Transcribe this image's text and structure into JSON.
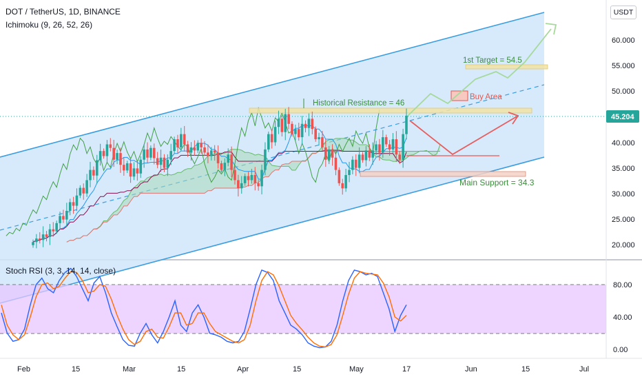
{
  "header": {
    "symbol_line": "DOT / TetherUS, 1D, BINANCE",
    "indicator_line": "Ichimoku (9, 26, 52, 26)",
    "currency_button": "USDT"
  },
  "stoch_panel": {
    "title": "Stoch RSI (3, 3, 14, 14, close)"
  },
  "colors": {
    "channel_fill": "#cfe6fb",
    "channel_line": "#3a9de0",
    "candle_up": "#26a69a",
    "candle_down": "#ef5350",
    "cloud_fill": "#a9d9b6",
    "price_badge": "#26a69a",
    "stoch_k": "#2962ff",
    "stoch_d": "#ff6d00",
    "stoch_band": "#e7c7ff"
  },
  "chart_data": [
    {
      "type": "candlestick",
      "name": "price",
      "x_ticks": [
        "Feb",
        "15",
        "Mar",
        "15",
        "Apr",
        "15",
        "May",
        "17",
        "Jun",
        "15",
        "Jul"
      ],
      "y_ticks": [
        20,
        25,
        30,
        35,
        40,
        45,
        50,
        55,
        60
      ],
      "ylim": [
        17.5,
        64
      ],
      "last_price": "45.204",
      "ohlc_closes": [
        20.5,
        21.2,
        20.9,
        22.0,
        21.5,
        23.0,
        22.6,
        24.2,
        25.6,
        24.9,
        26.6,
        28.3,
        27.6,
        29.6,
        31.1,
        30.0,
        32.6,
        34.6,
        33.5,
        36.5,
        38.3,
        37.3,
        39.6,
        38.9,
        36.6,
        37.9,
        35.6,
        34.5,
        35.9,
        33.3,
        34.9,
        33.9,
        36.6,
        38.6,
        37.0,
        38.9,
        36.9,
        35.6,
        37.0,
        35.0,
        36.6,
        38.3,
        40.6,
        39.0,
        41.6,
        39.6,
        38.0,
        39.0,
        38.4,
        39.9,
        39.0,
        38.0,
        37.3,
        38.4,
        38.0,
        35.9,
        34.6,
        36.0,
        37.6,
        34.6,
        32.6,
        31.0,
        32.0,
        33.4,
        32.6,
        33.6,
        32.0,
        31.4,
        34.6,
        38.6,
        41.6,
        40.0,
        43.0,
        44.6,
        42.0,
        45.5,
        43.6,
        41.6,
        42.6,
        41.0,
        43.6,
        42.8,
        44.6,
        42.6,
        40.6,
        41.0,
        39.0,
        36.6,
        38.6,
        37.0,
        34.6,
        32.0,
        31.0,
        33.6,
        34.6,
        36.6,
        35.0,
        37.6,
        36.5,
        38.4,
        37.0,
        38.4,
        39.6,
        38.0,
        41.0,
        39.6,
        38.6,
        40.6,
        37.6,
        36.6,
        41.6,
        45.2
      ]
    },
    {
      "type": "line",
      "name": "stoch_rsi",
      "y_ticks": [
        0,
        40,
        80
      ],
      "ylim": [
        -8,
        112
      ],
      "levels": [
        20,
        80
      ],
      "series": [
        {
          "values": [
            45,
            20,
            10,
            12,
            25,
            55,
            80,
            88,
            75,
            70,
            85,
            95,
            100,
            90,
            75,
            60,
            82,
            90,
            70,
            45,
            28,
            12,
            5,
            4,
            20,
            32,
            18,
            8,
            22,
            40,
            60,
            30,
            22,
            45,
            55,
            40,
            20,
            18,
            15,
            10,
            8,
            10,
            22,
            50,
            80,
            98,
            95,
            85,
            60,
            45,
            30,
            25,
            18,
            8,
            4,
            2,
            3,
            10,
            30,
            60,
            85,
            98,
            96,
            92,
            94,
            90,
            70,
            50,
            22,
            42,
            55
          ]
        },
        {
          "values": [
            55,
            30,
            18,
            12,
            18,
            40,
            65,
            80,
            82,
            75,
            78,
            88,
            96,
            95,
            85,
            70,
            72,
            80,
            78,
            62,
            42,
            25,
            12,
            6,
            10,
            22,
            25,
            15,
            14,
            28,
            45,
            45,
            30,
            32,
            45,
            45,
            32,
            22,
            18,
            14,
            10,
            8,
            12,
            30,
            60,
            85,
            96,
            92,
            78,
            60,
            42,
            32,
            24,
            15,
            8,
            4,
            3,
            6,
            18,
            42,
            68,
            88,
            96,
            94,
            93,
            92,
            82,
            65,
            40,
            35,
            42
          ]
        }
      ]
    }
  ],
  "annotations": {
    "historical_resistance": "Historical Resistance = 46",
    "buy_area": "Buy Area",
    "first_target": "1st Target = 54.5",
    "main_support": "Main Support = 34.3"
  },
  "axis_labels": {
    "price": [
      "60.000",
      "55.000",
      "50.000",
      "40.000",
      "35.000",
      "30.000",
      "25.000",
      "20.000"
    ],
    "price_badge": "45.204",
    "stoch": [
      "80.00",
      "40.00",
      "0.00"
    ],
    "time": [
      "Feb",
      "15",
      "Mar",
      "15",
      "Apr",
      "15",
      "May",
      "17",
      "Jun",
      "15",
      "Jul"
    ]
  },
  "icons": {
    "currency": "usdt-button"
  }
}
